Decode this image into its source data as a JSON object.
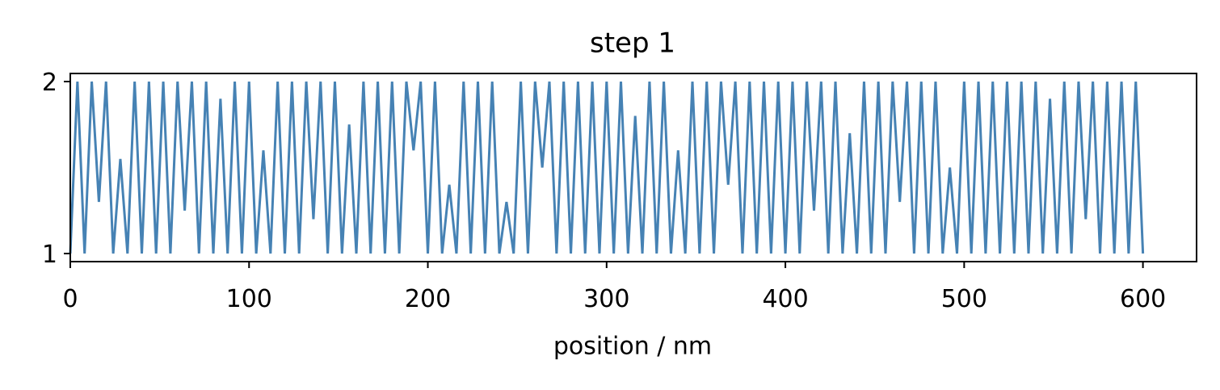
{
  "chart_data": {
    "type": "line",
    "title": "step 1",
    "x_label": "position / nm",
    "xlim": [
      0,
      630
    ],
    "ylim": [
      0.953,
      2.047
    ],
    "xticks": [
      0,
      100,
      200,
      300,
      400,
      500,
      600
    ],
    "yticks": [
      1,
      2
    ],
    "series": [
      {
        "color": "#4682b4",
        "x": [
          0,
          4,
          8,
          12,
          16,
          20,
          24,
          28,
          32,
          36,
          40,
          44,
          48,
          52,
          56,
          60,
          64,
          68,
          72,
          76,
          80,
          84,
          88,
          92,
          96,
          100,
          104,
          108,
          112,
          116,
          120,
          124,
          128,
          132,
          136,
          140,
          144,
          148,
          152,
          156,
          160,
          164,
          168,
          172,
          176,
          180,
          184,
          188,
          192,
          196,
          200,
          204,
          208,
          212,
          216,
          220,
          224,
          228,
          232,
          236,
          240,
          244,
          248,
          252,
          256,
          260,
          264,
          268,
          272,
          276,
          280,
          284,
          288,
          292,
          296,
          300,
          304,
          308,
          312,
          316,
          320,
          324,
          328,
          332,
          336,
          340,
          344,
          348,
          352,
          356,
          360,
          364,
          368,
          372,
          376,
          380,
          384,
          388,
          392,
          396,
          400,
          404,
          408,
          412,
          416,
          420,
          424,
          428,
          432,
          436,
          440,
          444,
          448,
          452,
          456,
          460,
          464,
          468,
          472,
          476,
          480,
          484,
          488,
          492,
          496,
          500,
          504,
          508,
          512,
          516,
          520,
          524,
          528,
          532,
          536,
          540,
          544,
          548,
          552,
          556,
          560,
          564,
          568,
          572,
          576,
          580,
          584,
          588,
          592,
          596,
          600
        ],
        "values": [
          1,
          2,
          1,
          2,
          1.3,
          2,
          1,
          1.55,
          1,
          2,
          1,
          2,
          1,
          2,
          1,
          2,
          1.25,
          2,
          1,
          2,
          1,
          1.9,
          1,
          2,
          1,
          2,
          1,
          1.6,
          1,
          2,
          1,
          2,
          1,
          2,
          1.2,
          2,
          1,
          2,
          1,
          1.75,
          1,
          2,
          1,
          2,
          1,
          2,
          1,
          2,
          1.6,
          2,
          1,
          2,
          1,
          1.4,
          1,
          2,
          1,
          2,
          1,
          2,
          1,
          1.3,
          1,
          2,
          1,
          2,
          1.5,
          2,
          1,
          2,
          1,
          2,
          1,
          2,
          1,
          2,
          1,
          2,
          1,
          1.8,
          1,
          2,
          1,
          2,
          1,
          1.6,
          1,
          2,
          1,
          2,
          1,
          2,
          1.4,
          2,
          1,
          2,
          1,
          2,
          1,
          2,
          1,
          2,
          1,
          2,
          1.25,
          2,
          1,
          2,
          1,
          1.7,
          1,
          2,
          1,
          2,
          1,
          2,
          1.3,
          2,
          1,
          2,
          1,
          2,
          1,
          1.5,
          1,
          2,
          1,
          2,
          1,
          2,
          1,
          2,
          1,
          2,
          1,
          2,
          1,
          1.9,
          1,
          2,
          1,
          2,
          1.2,
          2,
          1,
          2,
          1,
          2,
          1,
          2,
          1
        ]
      }
    ]
  }
}
